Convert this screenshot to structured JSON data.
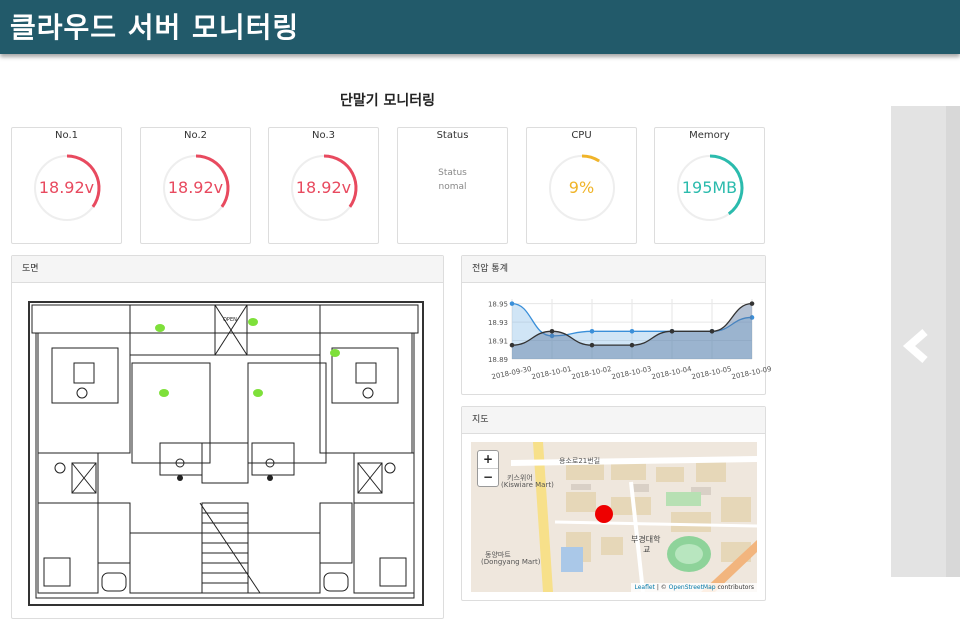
{
  "header": {
    "title": "클라우드 서버 모니터링"
  },
  "page": {
    "title": "단말기 모니터링"
  },
  "cards": [
    {
      "label": "No.1",
      "value": "18.92v",
      "fraction": 0.35,
      "color": "#e84a5f"
    },
    {
      "label": "No.2",
      "value": "18.92v",
      "fraction": 0.35,
      "color": "#e84a5f"
    },
    {
      "label": "No.3",
      "value": "18.92v",
      "fraction": 0.35,
      "color": "#e84a5f"
    },
    {
      "label": "CPU",
      "value": "9%",
      "fraction": 0.09,
      "color": "#f0b429"
    },
    {
      "label": "Memory",
      "value": "195MB",
      "fraction": 0.4,
      "color": "#2bbbad"
    }
  ],
  "status_card": {
    "label": "Status",
    "line1": "Status",
    "line2": "nomal"
  },
  "floorplan": {
    "title": "도면",
    "open_label": "OPEN"
  },
  "voltage_chart": {
    "title": "전압 통계"
  },
  "chart_data": {
    "type": "area",
    "categories": [
      "2018-09-30",
      "2018-10-01",
      "2018-10-02",
      "2018-10-03",
      "2018-10-04",
      "2018-10-05",
      "2018-10-09"
    ],
    "yticks": [
      "18.95",
      "18.93",
      "18.91",
      "18.89"
    ],
    "ylim": [
      18.89,
      18.955
    ],
    "grid": true,
    "series": [
      {
        "values": [
          18.95,
          18.915,
          18.92,
          18.92,
          18.92,
          18.92,
          18.935
        ],
        "color": "#3a8fd9"
      },
      {
        "values": [
          18.905,
          18.92,
          18.905,
          18.905,
          18.92,
          18.92,
          18.95
        ],
        "color": "#333333"
      }
    ]
  },
  "map": {
    "title": "지도",
    "zoom_in": "+",
    "zoom_out": "−",
    "attribution_leaflet": "Leaflet",
    "attribution_mid": " | © ",
    "attribution_osm": "OpenStreetMap",
    "attribution_tail": " contributors",
    "labels": {
      "univ": "부경대학",
      "univ2": "교",
      "mart": "동양마트",
      "mart_en": "(Dongyang Mart)",
      "mart2": "키스위어",
      "mart2_en": "(Kiswiare Mart)",
      "road": "용소로21번길"
    },
    "marker_color": "#ee0000"
  }
}
